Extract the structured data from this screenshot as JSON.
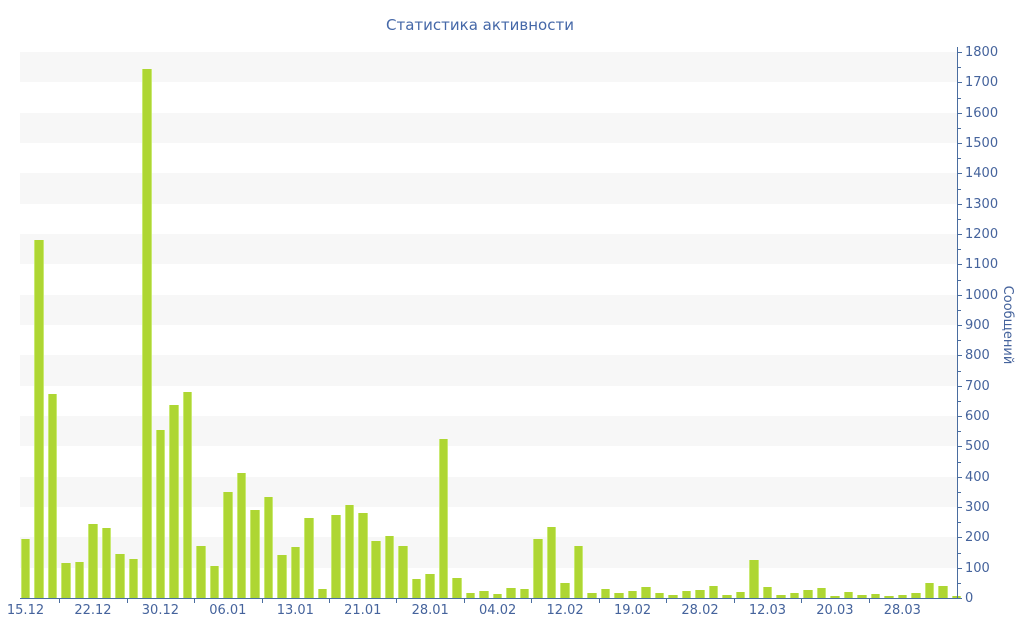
{
  "title": "Статистика активности",
  "colors": {
    "bar_fill": "#aed633",
    "bar_edge": "#c9e972",
    "axis_line": "#4a6da0",
    "text_blue": "#45639c",
    "title_blue": "#4568a8",
    "band_gray": "#f7f7f7",
    "background": "#ffffff"
  },
  "chart_data": {
    "type": "bar",
    "title": "Статистика активности",
    "xlabel": "",
    "ylabel": "Сообщений",
    "ylim": [
      0,
      1800
    ],
    "y_tick_step": 100,
    "y_minor_tick_step": 50,
    "grid": "alternating horizontal bands, gray on 100-200, 300-400, ... 1700-1800",
    "legend_position": "none",
    "y_axis_side": "right",
    "x_tick_labels": [
      "15.12",
      "22.12",
      "30.12",
      "06.01",
      "13.01",
      "21.01",
      "28.01",
      "04.02",
      "12.02",
      "19.02",
      "28.02",
      "12.03",
      "20.03",
      "28.03"
    ],
    "x_label_every_n_bars": 5,
    "values": [
      195,
      1181,
      672,
      115,
      119,
      245,
      231,
      145,
      130,
      1745,
      555,
      637,
      679,
      170,
      104,
      351,
      412,
      291,
      332,
      143,
      168,
      264,
      30,
      272,
      308,
      279,
      189,
      205,
      173,
      63,
      78,
      525,
      66,
      17,
      24,
      12,
      33,
      30,
      196,
      235,
      49,
      171,
      15,
      30,
      17,
      24,
      35,
      17,
      11,
      23,
      26,
      41,
      11,
      20,
      126,
      35,
      10,
      17,
      25,
      34,
      6,
      20,
      10,
      14,
      5,
      10,
      17,
      49,
      41,
      5
    ]
  }
}
